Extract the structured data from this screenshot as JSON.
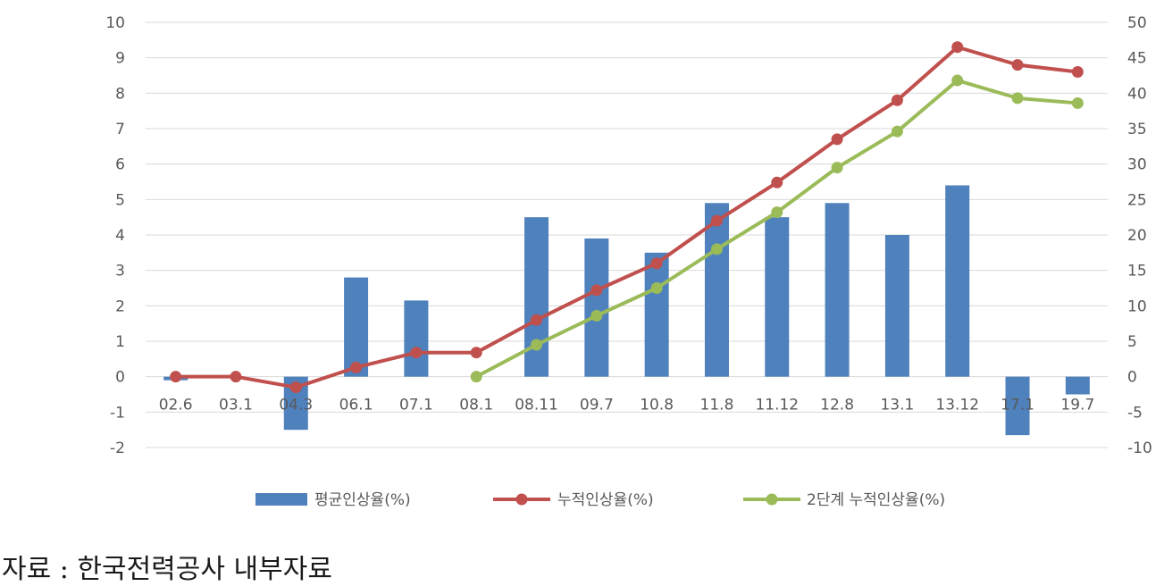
{
  "chart_data": {
    "type": "bar",
    "categories": [
      "02.6",
      "03.1",
      "04.3",
      "06.1",
      "07.1",
      "08.1",
      "08.11",
      "09.7",
      "10.8",
      "11.8",
      "11.12",
      "12.8",
      "13.1",
      "13.12",
      "17.1",
      "19.7"
    ],
    "y_left": {
      "min": -2,
      "max": 10,
      "step": 1,
      "ticks": [
        "-2",
        "-1",
        "0",
        "1",
        "2",
        "3",
        "4",
        "5",
        "6",
        "7",
        "8",
        "9",
        "10"
      ]
    },
    "y_right": {
      "min": -10,
      "max": 50,
      "step": 5,
      "ticks": [
        "-10",
        "-5",
        "0",
        "5",
        "10",
        "15",
        "20",
        "25",
        "30",
        "35",
        "40",
        "45",
        "50"
      ]
    },
    "grid": true,
    "legend_position": "bottom",
    "series": [
      {
        "name": "평균인상율(%)",
        "type": "bar",
        "axis": "left",
        "color": "#4f81bd",
        "values": [
          -0.1,
          0,
          -1.5,
          2.8,
          2.15,
          null,
          4.5,
          3.9,
          3.5,
          4.9,
          4.5,
          4.9,
          4.0,
          5.4,
          -1.65,
          -0.5
        ]
      },
      {
        "name": "누적인상율(%)",
        "type": "line",
        "axis": "right",
        "color": "#c0504d",
        "values": [
          0,
          0,
          -1.5,
          1.3,
          3.4,
          3.4,
          8.0,
          12.2,
          16.0,
          22.0,
          27.4,
          33.5,
          39.0,
          46.5,
          44.0,
          43.0
        ]
      },
      {
        "name": "2단계 누적인상율(%)",
        "type": "line",
        "axis": "right",
        "color": "#9bbb59",
        "values": [
          null,
          null,
          null,
          null,
          null,
          0,
          4.5,
          8.6,
          12.5,
          18.0,
          23.2,
          29.5,
          34.6,
          41.8,
          39.3,
          38.6
        ]
      }
    ]
  },
  "source_text": "자료 : 한국전력공사 내부자료"
}
